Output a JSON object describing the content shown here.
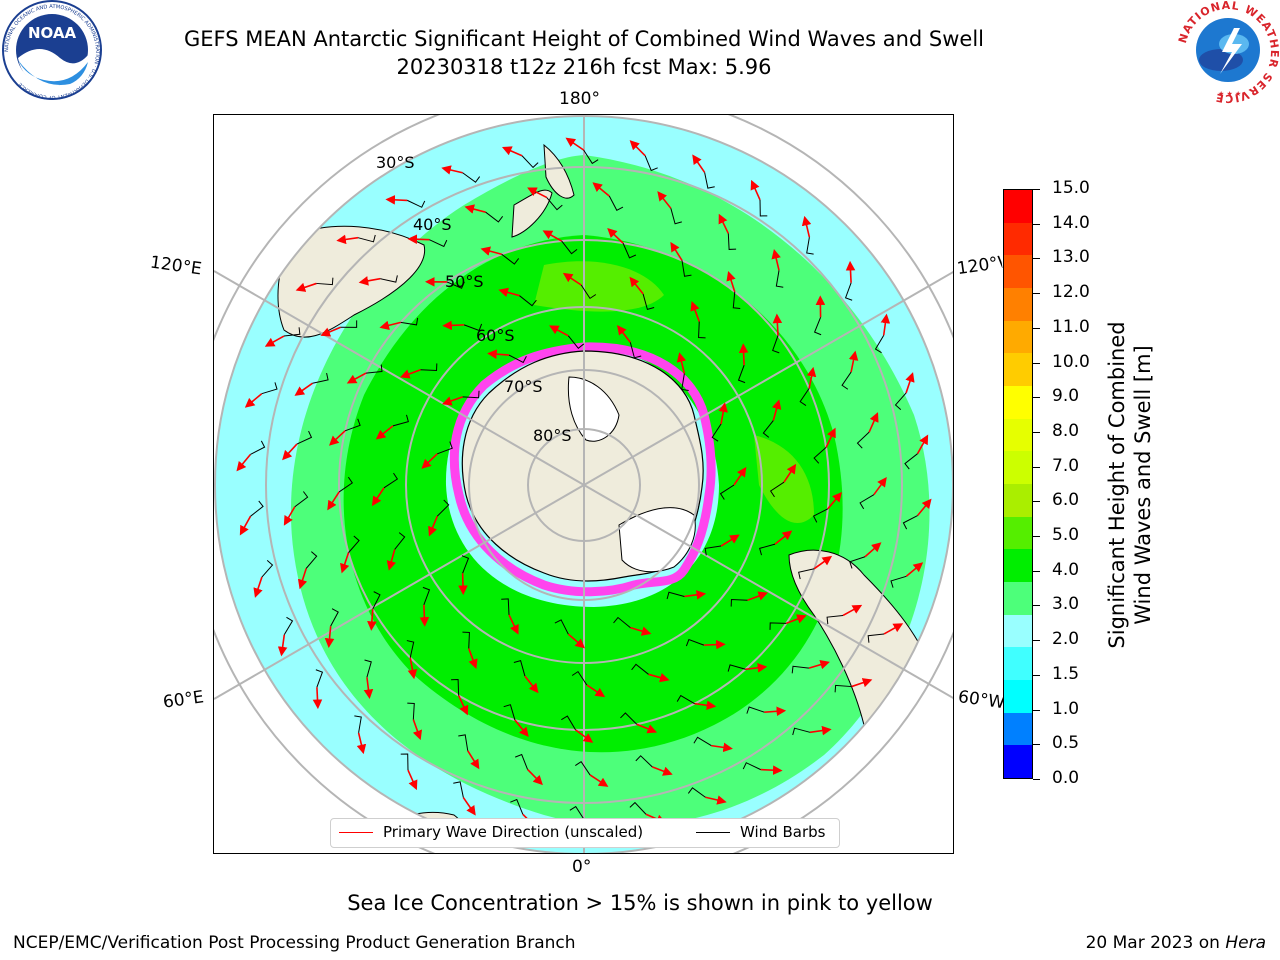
{
  "title": {
    "line1": "GEFS MEAN Antarctic Significant Height of Combined Wind Waves and Swell",
    "line2": "20230318 t12z 216h fcst   Max: 5.96"
  },
  "logos": {
    "left": "NOAA",
    "left_ring": "NATIONAL OCEANIC AND ATMOSPHERIC ADMINISTRATION · U.S. DEPARTMENT OF COMMERCE",
    "right_ring": "NATIONAL WEATHER SERVICE"
  },
  "map": {
    "projection": "south-polar-stereographic",
    "lon_labels": {
      "top": "180°",
      "bottom": "0°",
      "left_upper": "120°E",
      "left_lower": "60°E",
      "right_upper": "120°W",
      "right_lower": "60°W"
    },
    "lat_labels": [
      "30°S",
      "40°S",
      "50°S",
      "60°S",
      "70°S",
      "80°S"
    ],
    "colors": {
      "land": "#efecdc",
      "antarctica": "#efecdc",
      "ice_free": "#ffffff",
      "sea_ice": "#ff44ee",
      "wave_arrow": "#ff0000",
      "wind_barb": "#000000",
      "graticule": "#b5b5b5"
    }
  },
  "colorbar": {
    "label_line1": "Significant Height of Combined",
    "label_line2": "Wind Waves and Swell [m]",
    "ticks": [
      "15.0",
      "14.0",
      "13.0",
      "12.0",
      "11.0",
      "10.0",
      "9.0",
      "8.0",
      "7.0",
      "6.0",
      "5.0",
      "4.0",
      "3.0",
      "2.0",
      "1.5",
      "1.0",
      "0.5",
      "0.0"
    ],
    "colors_bottom_to_top": [
      "#0000ff",
      "#0080ff",
      "#00ffff",
      "#40ffff",
      "#99ffff",
      "#4dff7a",
      "#00ee00",
      "#55ee00",
      "#aaee00",
      "#ccff00",
      "#e6ff00",
      "#ffff00",
      "#ffcc00",
      "#ffaa00",
      "#ff8000",
      "#ff5500",
      "#ff2a00",
      "#ff0000"
    ]
  },
  "legend": {
    "items": [
      {
        "label": "Primary Wave Direction (unscaled)",
        "color": "#ff0000"
      },
      {
        "label": "Wind Barbs",
        "color": "#000000"
      }
    ]
  },
  "note": "Sea Ice Concentration > 15% is shown in pink to yellow",
  "footer": {
    "left": "NCEP/EMC/Verification Post Processing Product Generation Branch",
    "right_prefix": "20 Mar 2023 on ",
    "right_machine": "Hera"
  }
}
